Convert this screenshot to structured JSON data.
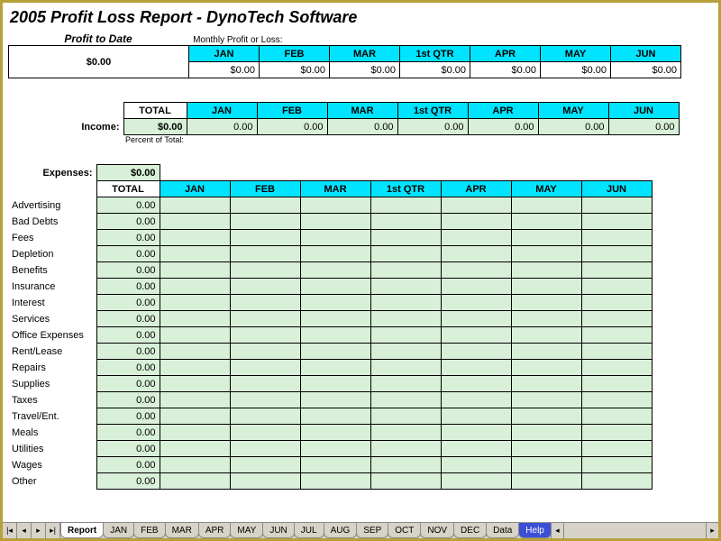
{
  "title": "2005 Profit Loss Report - DynoTech Software",
  "profit_to_date_label": "Profit to Date",
  "monthly_label": "Monthly Profit or Loss:",
  "profit_value": "$0.00",
  "months": [
    "JAN",
    "FEB",
    "MAR",
    "1st QTR",
    "APR",
    "MAY",
    "JUN"
  ],
  "profit_row": [
    "$0.00",
    "$0.00",
    "$0.00",
    "$0.00",
    "$0.00",
    "$0.00",
    "$0.00"
  ],
  "total_label": "TOTAL",
  "income_label": "Income:",
  "income_total": "$0.00",
  "income_row": [
    "0.00",
    "0.00",
    "0.00",
    "0.00",
    "0.00",
    "0.00",
    "0.00"
  ],
  "percent_note": "Percent of Total:",
  "expenses_label": "Expenses:",
  "expenses_total": "$0.00",
  "expense_categories": [
    "Advertising",
    "Bad Debts",
    "Fees",
    "Depletion",
    "Benefits",
    "Insurance",
    "Interest",
    "Services",
    "Office Expenses",
    "Rent/Lease",
    "Repairs",
    "Supplies",
    "Taxes",
    "Travel/Ent.",
    "Meals",
    "Utilities",
    "Wages",
    "Other"
  ],
  "expense_cell": "0.00",
  "tabs": [
    "Report",
    "JAN",
    "FEB",
    "MAR",
    "APR",
    "MAY",
    "JUN",
    "JUL",
    "AUG",
    "SEP",
    "OCT",
    "NOV",
    "DEC",
    "Data",
    "Help"
  ],
  "active_tab": 0,
  "special_tab": 14,
  "colors": {
    "header_bg": "#00e4ff",
    "green_bg": "#d8f0d8",
    "border_frame": "#b8a03a",
    "tab_bg": "#d7d3c8",
    "special_tab": "#3b4fd6"
  }
}
